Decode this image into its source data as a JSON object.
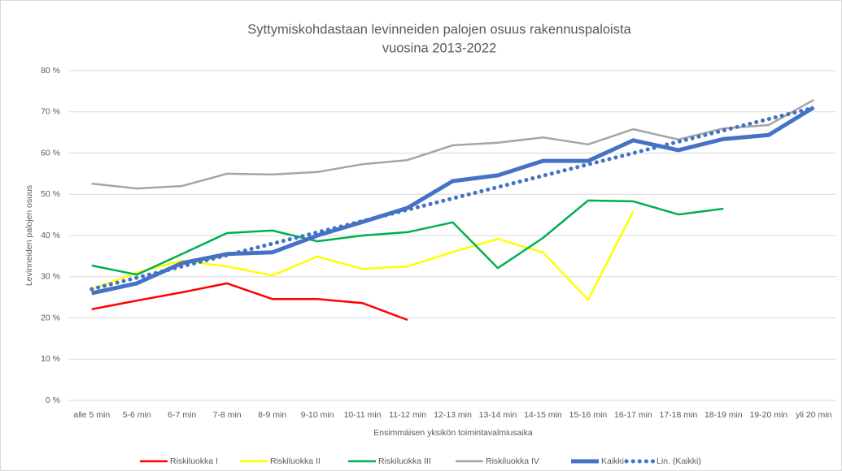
{
  "chart_data": {
    "type": "line",
    "title": [
      "Syttymiskohdastaan levinneiden palojen osuus rakennuspaloista",
      "vuosina 2013-2022"
    ],
    "x_label": "Ensimmäisen yksikön toimintavalmiusaika",
    "y_label": "Levinneiden palojen osuus",
    "categories": [
      "alle 5 min",
      "5-6 min",
      "6-7 min",
      "7-8 min",
      "8-9 min",
      "9-10 min",
      "10-11 min",
      "11-12 min",
      "12-13 min",
      "13-14 min",
      "14-15 min",
      "15-16 min",
      "16-17 min",
      "17-18 min",
      "18-19 min",
      "19-20 min",
      "yli 20 min"
    ],
    "ylim": [
      0,
      80
    ],
    "yticks": [
      {
        "value": 0,
        "label": "0 %"
      },
      {
        "value": 10,
        "label": "10 %"
      },
      {
        "value": 20,
        "label": "20 %"
      },
      {
        "value": 30,
        "label": "30 %"
      },
      {
        "value": 40,
        "label": "40 %"
      },
      {
        "value": 50,
        "label": "50 %"
      },
      {
        "value": 60,
        "label": "60 %"
      },
      {
        "value": 70,
        "label": "70 %"
      },
      {
        "value": 80,
        "label": "80 %"
      }
    ],
    "grid": true,
    "legend": "bottom",
    "series": [
      {
        "name": "Riskiluokka I",
        "color": "#ff0000",
        "weight": "normal",
        "style": "solid",
        "values": [
          22.1,
          24.2,
          26.2,
          28.4,
          24.6,
          24.6,
          23.6,
          19.5,
          null,
          null,
          null,
          null,
          null,
          null,
          null,
          null,
          null
        ]
      },
      {
        "name": "Riskiluokka II",
        "color": "#ffff00",
        "weight": "normal",
        "style": "solid",
        "values": [
          27,
          31,
          33.9,
          32.5,
          30.3,
          34.9,
          31.9,
          32.5,
          36,
          39.2,
          35.9,
          24.4,
          45.9,
          null,
          null,
          null,
          null
        ]
      },
      {
        "name": "Riskiluokka III",
        "color": "#00b050",
        "weight": "normal",
        "style": "solid",
        "values": [
          32.7,
          30.5,
          35.5,
          40.6,
          41.2,
          38.6,
          40,
          40.8,
          43.2,
          32.1,
          39.4,
          48.5,
          48.3,
          45.1,
          46.5,
          null,
          null
        ]
      },
      {
        "name": "Riskiluokka IV",
        "color": "#a5a5a5",
        "weight": "normal",
        "style": "solid",
        "values": [
          52.6,
          51.4,
          52,
          55,
          54.8,
          55.4,
          57.3,
          58.3,
          61.9,
          62.5,
          63.8,
          62.1,
          65.8,
          63.3,
          66,
          66.8,
          72.9
        ]
      },
      {
        "name": "Kaikki",
        "color": "#4472c4",
        "weight": "thick",
        "style": "solid",
        "values": [
          26,
          28.4,
          33.3,
          35.5,
          35.9,
          40,
          43.3,
          46.7,
          53.2,
          54.6,
          58.1,
          58.1,
          63.1,
          60.7,
          63.4,
          64.4,
          71.1
        ]
      },
      {
        "name": "Lin. (Kaikki)",
        "color": "#4472c4",
        "weight": "thick",
        "style": "dotted",
        "values": [
          27,
          29.75,
          32.5,
          35.25,
          38,
          40.75,
          43.5,
          46.25,
          49,
          51.75,
          54.5,
          57.25,
          60,
          62.75,
          65.5,
          68.25,
          71
        ]
      }
    ]
  }
}
